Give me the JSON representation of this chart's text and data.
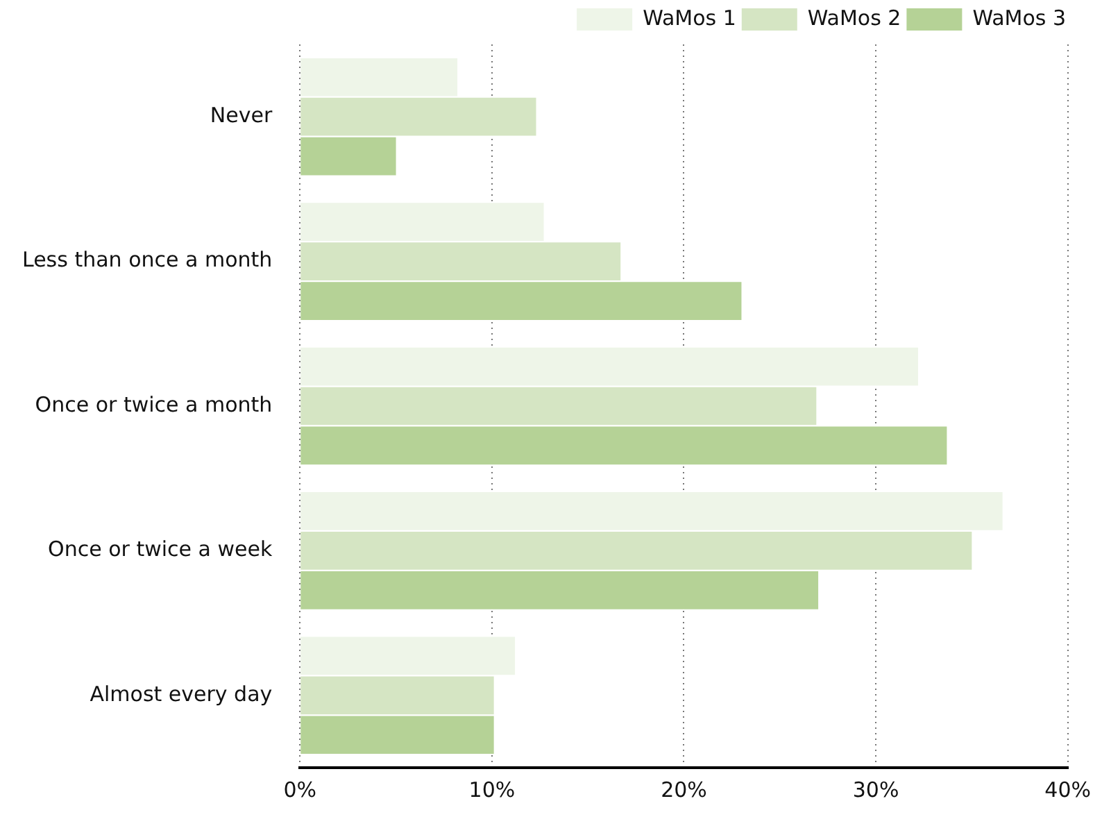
{
  "chart_data": {
    "type": "bar",
    "orientation": "horizontal",
    "categories": [
      "Never",
      "Less than once a month",
      "Once or twice a month",
      "Once or twice a week",
      "Almost every day"
    ],
    "series": [
      {
        "name": "WaMos 1",
        "color": "#eef5e8",
        "values": [
          8.2,
          12.7,
          32.2,
          36.6,
          11.2
        ]
      },
      {
        "name": "WaMos 2",
        "color": "#d5e5c3",
        "values": [
          12.3,
          16.7,
          26.9,
          35.0,
          10.1
        ]
      },
      {
        "name": "WaMos 3",
        "color": "#b5d296",
        "values": [
          5.0,
          23.0,
          33.7,
          27.0,
          10.1
        ]
      }
    ],
    "xlim": [
      0,
      40
    ],
    "xticks": [
      {
        "value": 0,
        "label": "0%"
      },
      {
        "value": 10,
        "label": "10%"
      },
      {
        "value": 20,
        "label": "20%"
      },
      {
        "value": 30,
        "label": "30%"
      },
      {
        "value": 40,
        "label": "40%"
      }
    ],
    "grid": "x",
    "legend": "top right"
  }
}
